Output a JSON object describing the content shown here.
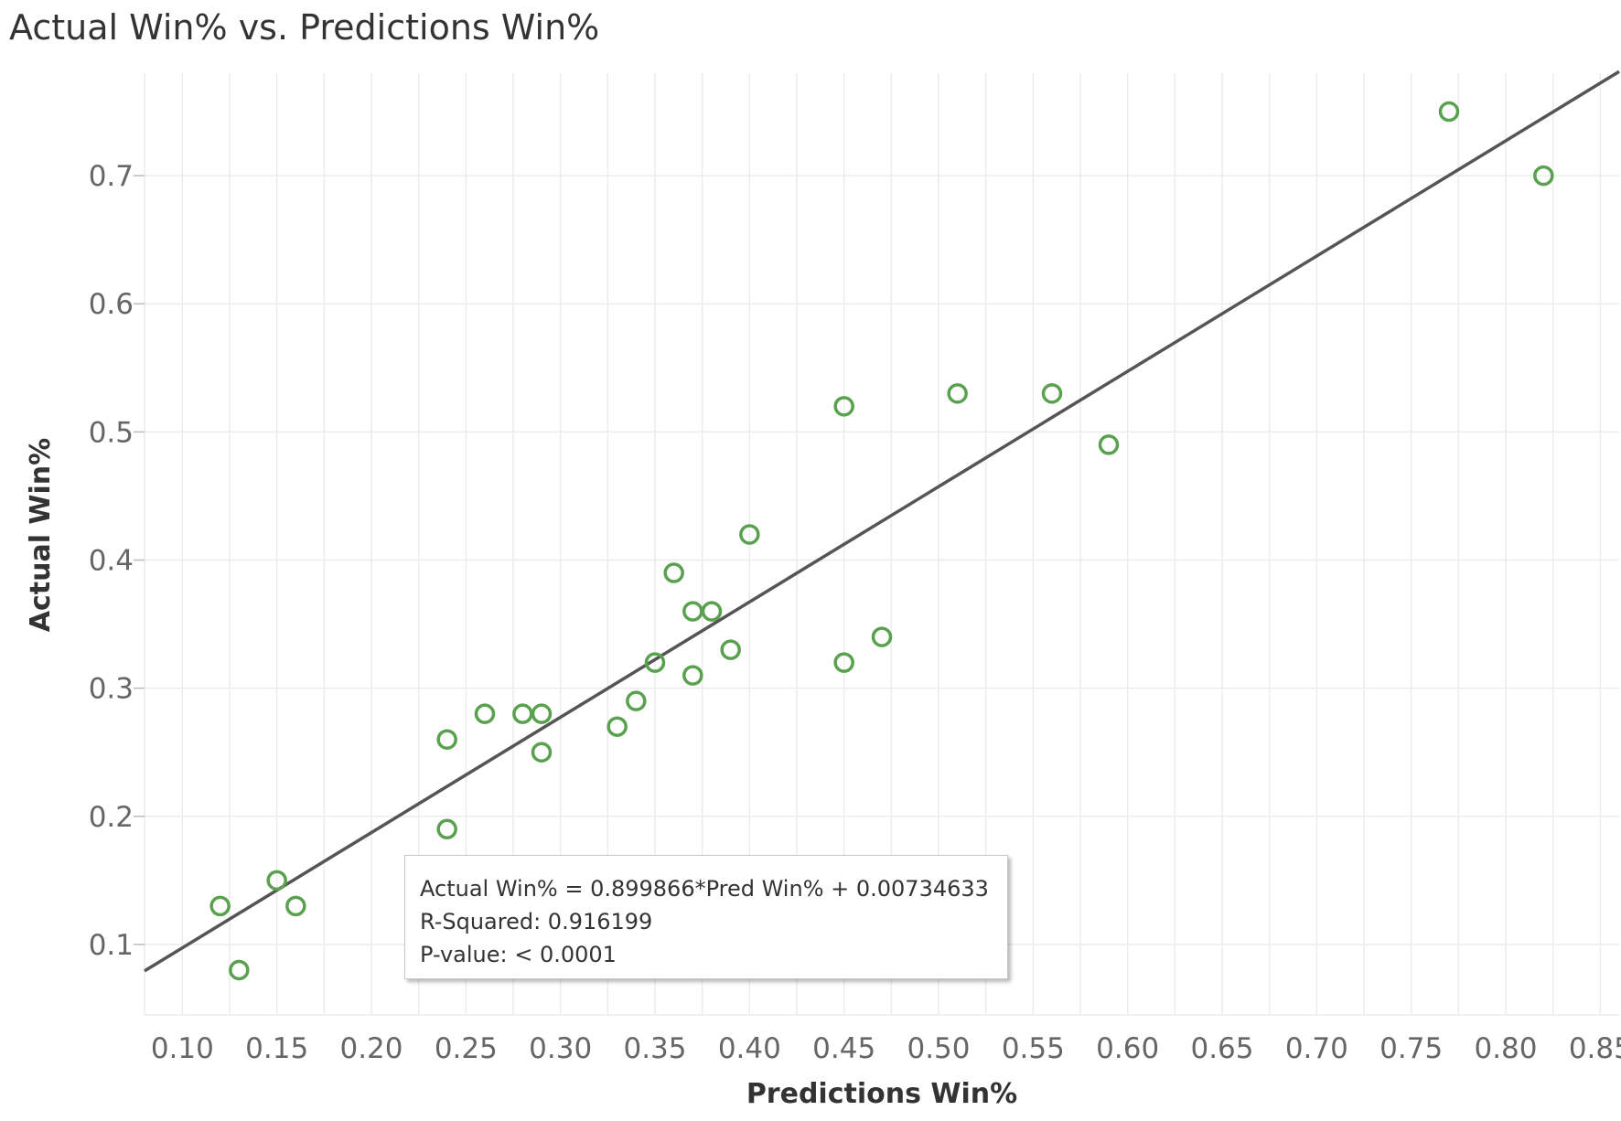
{
  "chart_data": {
    "type": "scatter",
    "title": "Actual Win% vs. Predictions Win%",
    "xlabel": "Predictions Win%",
    "ylabel": "Actual Win%",
    "xlim": [
      0.08,
      0.86
    ],
    "ylim": [
      0.045,
      0.78
    ],
    "x_ticks": [
      "0.10",
      "0.15",
      "0.20",
      "0.25",
      "0.30",
      "0.35",
      "0.40",
      "0.45",
      "0.50",
      "0.55",
      "0.60",
      "0.65",
      "0.70",
      "0.75",
      "0.80",
      "0.85"
    ],
    "y_ticks": [
      "0.1",
      "0.2",
      "0.3",
      "0.4",
      "0.5",
      "0.6",
      "0.7"
    ],
    "grid": true,
    "colors": {
      "points": "#59a14f",
      "trend": "#555555",
      "grid": "#ececec"
    },
    "points": [
      {
        "x": 0.12,
        "y": 0.13
      },
      {
        "x": 0.13,
        "y": 0.08
      },
      {
        "x": 0.15,
        "y": 0.15
      },
      {
        "x": 0.16,
        "y": 0.13
      },
      {
        "x": 0.24,
        "y": 0.26
      },
      {
        "x": 0.24,
        "y": 0.19
      },
      {
        "x": 0.26,
        "y": 0.28
      },
      {
        "x": 0.28,
        "y": 0.28
      },
      {
        "x": 0.29,
        "y": 0.28
      },
      {
        "x": 0.29,
        "y": 0.25
      },
      {
        "x": 0.33,
        "y": 0.27
      },
      {
        "x": 0.34,
        "y": 0.29
      },
      {
        "x": 0.35,
        "y": 0.32
      },
      {
        "x": 0.36,
        "y": 0.39
      },
      {
        "x": 0.37,
        "y": 0.36
      },
      {
        "x": 0.38,
        "y": 0.36
      },
      {
        "x": 0.37,
        "y": 0.31
      },
      {
        "x": 0.39,
        "y": 0.33
      },
      {
        "x": 0.4,
        "y": 0.42
      },
      {
        "x": 0.45,
        "y": 0.52
      },
      {
        "x": 0.45,
        "y": 0.32
      },
      {
        "x": 0.47,
        "y": 0.34
      },
      {
        "x": 0.51,
        "y": 0.53
      },
      {
        "x": 0.56,
        "y": 0.53
      },
      {
        "x": 0.59,
        "y": 0.49
      },
      {
        "x": 0.77,
        "y": 0.75
      },
      {
        "x": 0.82,
        "y": 0.7
      }
    ],
    "trend_line": {
      "slope": 0.899866,
      "intercept": 0.00734633
    },
    "tooltip": {
      "equation": "Actual Win% = 0.899866*Pred Win% + 0.00734633",
      "r_squared": "R-Squared: 0.916199",
      "p_value": "P-value: < 0.0001"
    }
  }
}
